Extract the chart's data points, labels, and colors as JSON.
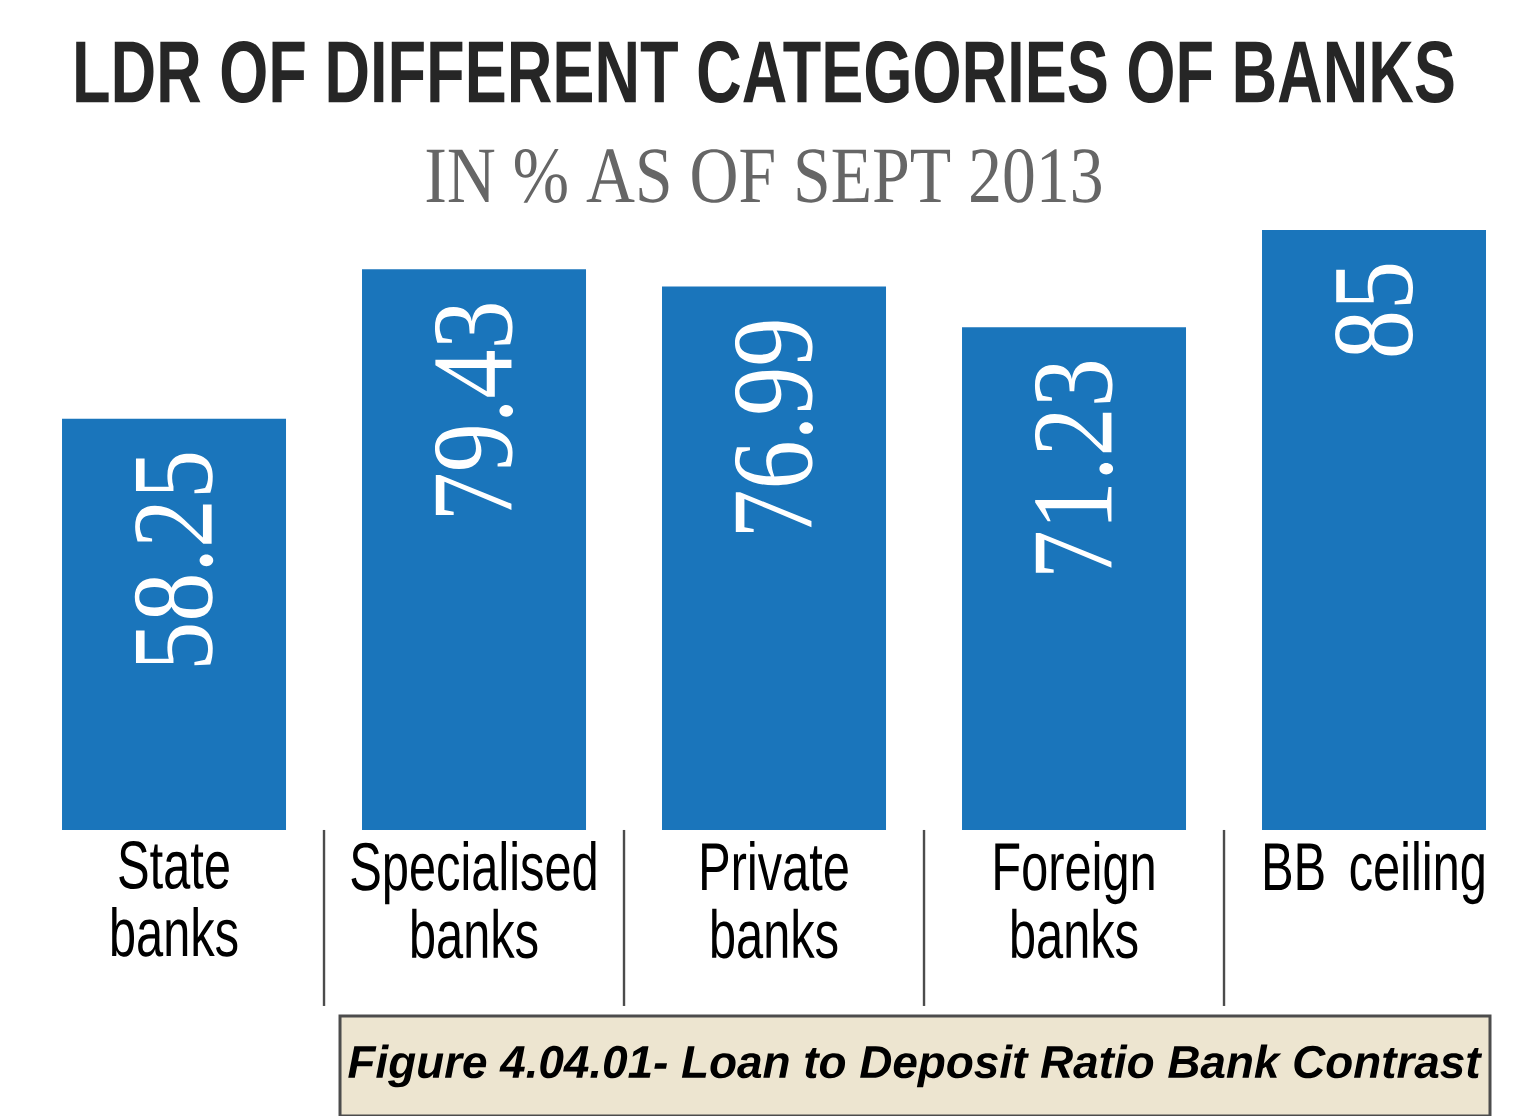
{
  "chart_data": {
    "type": "bar",
    "title": "LDR OF DIFFERENT CATEGORIES OF BANKS",
    "subtitle": "IN % AS OF SEPT 2013",
    "categories": [
      "State banks",
      "Specialised banks",
      "Private banks",
      "Foreign banks",
      "BB ceiling"
    ],
    "values": [
      58.25,
      79.43,
      76.99,
      71.23,
      85
    ],
    "color": "#1a75bb",
    "data_labels": true,
    "annotations": [
      "Figure 4.04.01- Loan to Deposit Ratio Bank Contrast"
    ]
  }
}
